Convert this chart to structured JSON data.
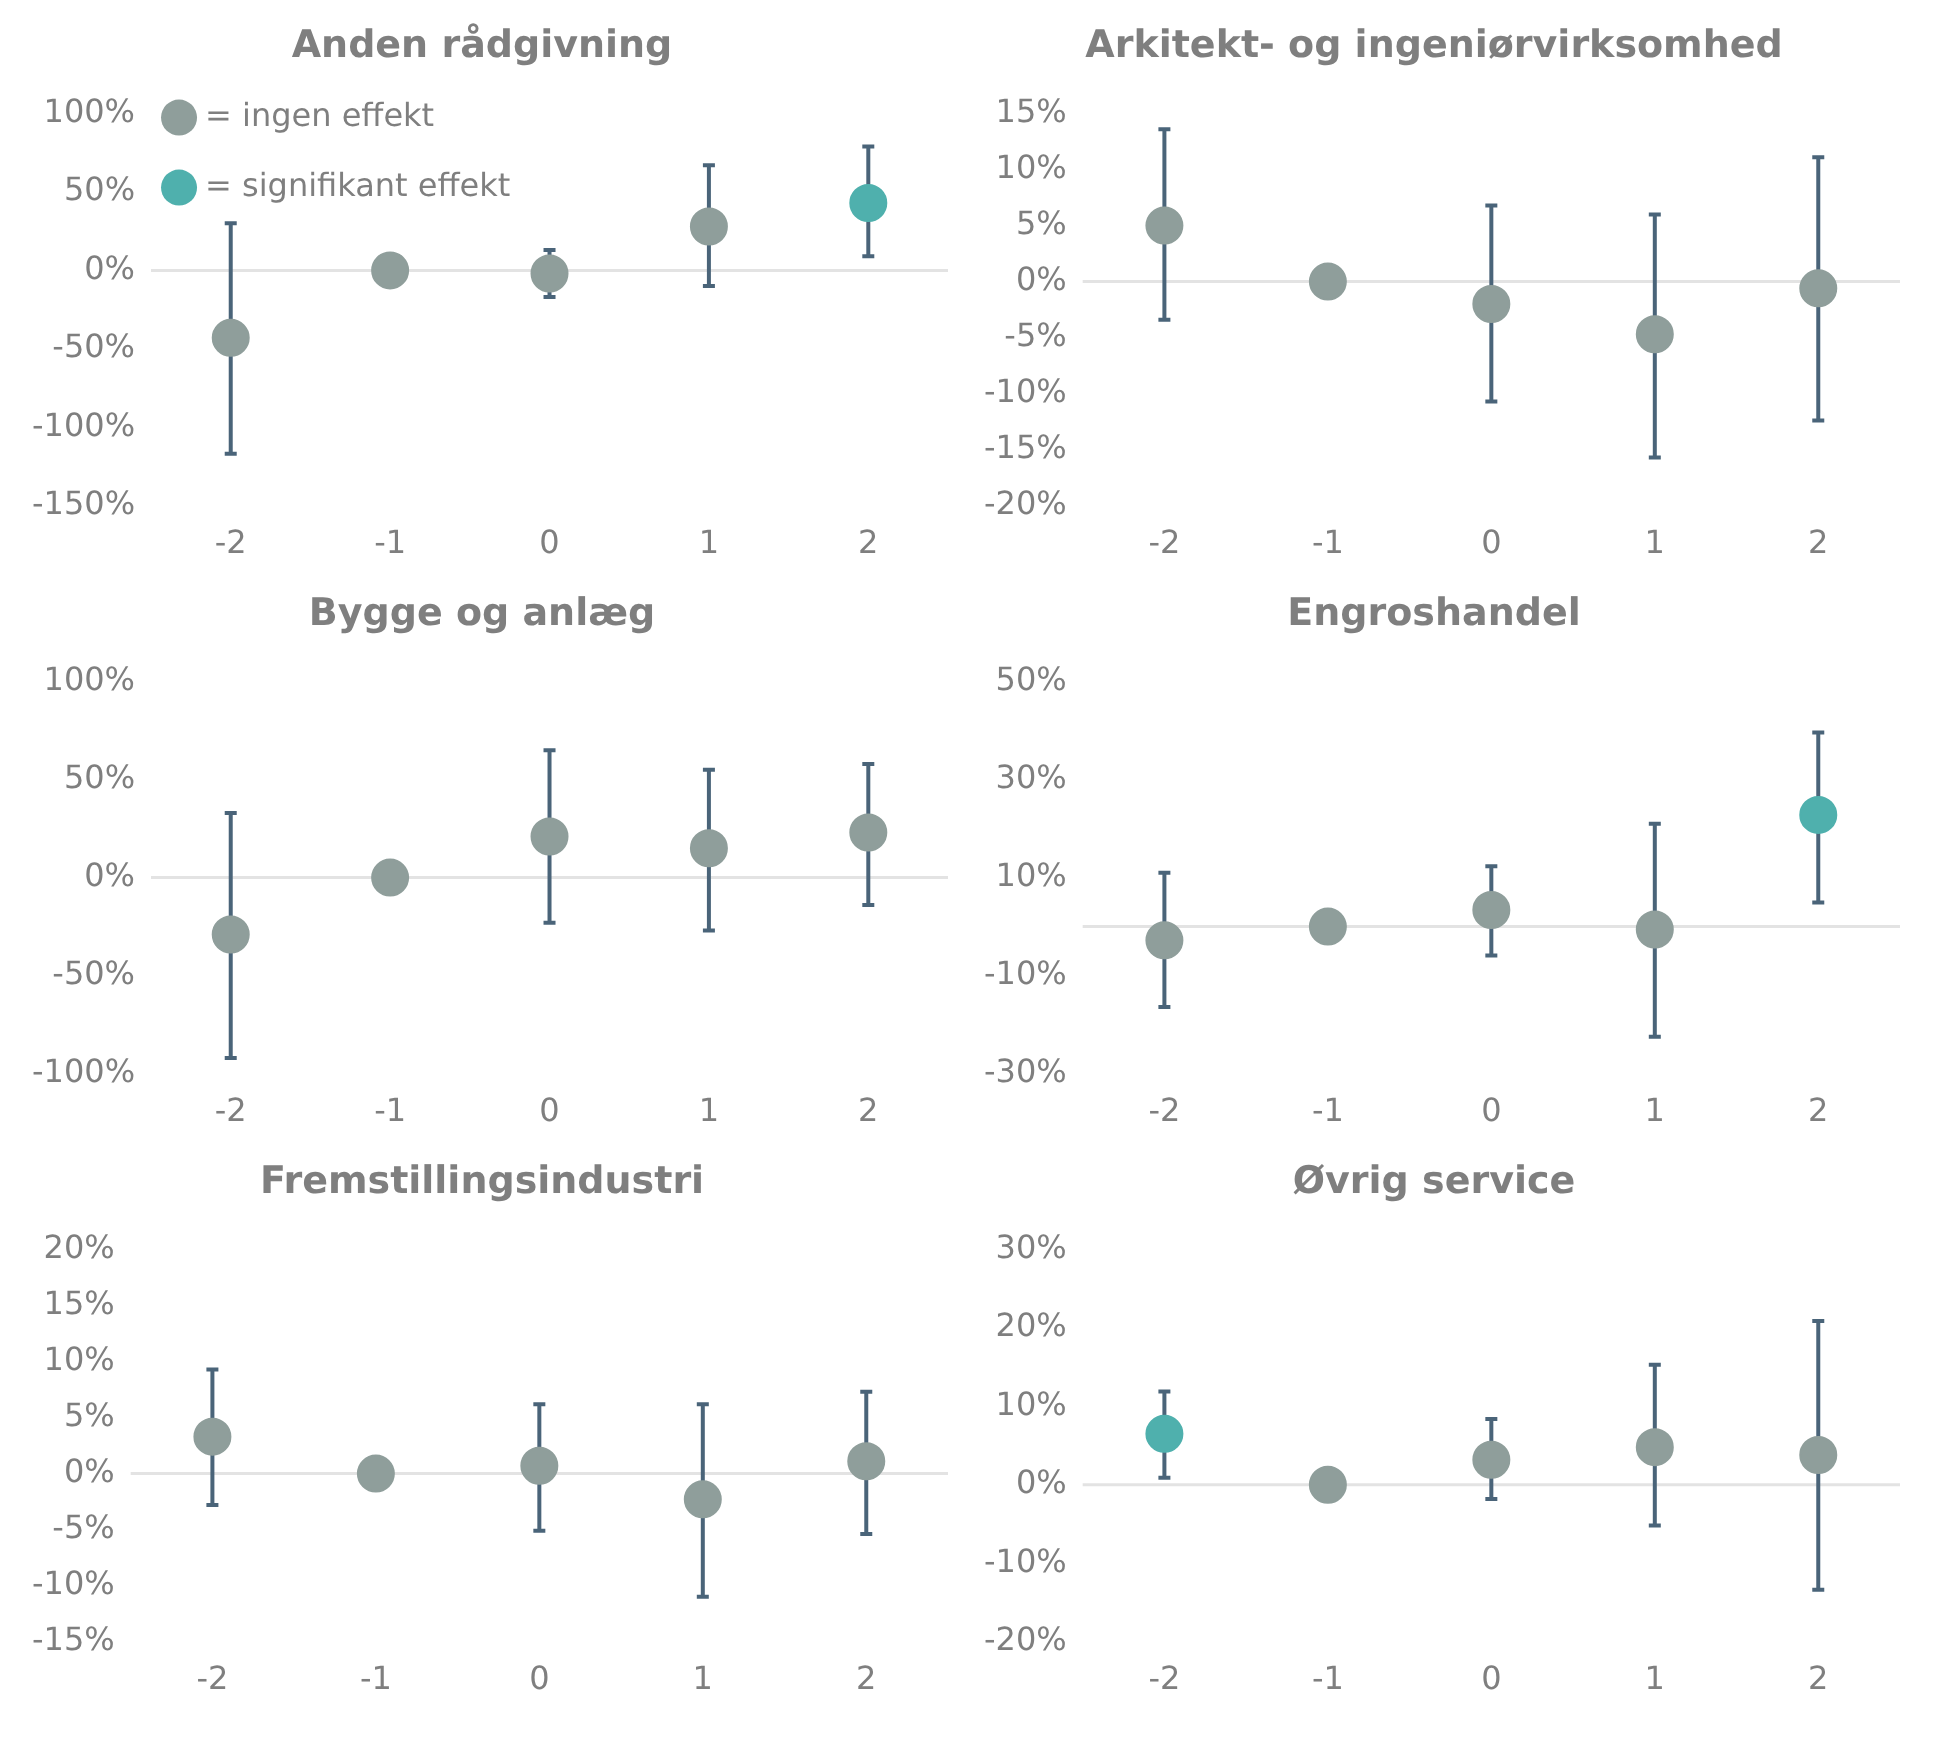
{
  "chart_data": [
    {
      "type": "scatter",
      "title": "Anden rådgivning",
      "categories": [
        "-2",
        "-1",
        "0",
        "1",
        "2"
      ],
      "ylim": [
        -150,
        100
      ],
      "yticks": [
        {
          "value": -150,
          "label": "-150%"
        },
        {
          "value": -100,
          "label": "-100%"
        },
        {
          "value": -50,
          "label": "-50%"
        },
        {
          "value": 0,
          "label": "0%"
        },
        {
          "value": 50,
          "label": "50%"
        },
        {
          "value": 100,
          "label": "100%"
        }
      ],
      "marker": "circle",
      "legend": "top left",
      "ref_lines": [
        {
          "axis": "y",
          "value": 0,
          "color": "#e3e3e3"
        }
      ],
      "series": [
        {
          "name": "= ingen effekt",
          "color": "#8f9e9b",
          "values": [
            -43,
            0,
            -2,
            28,
            null
          ],
          "errors": [
            [
              -117,
              30
            ],
            null,
            [
              -17,
              13
            ],
            [
              -10,
              67
            ],
            null
          ]
        },
        {
          "name": "= signifikant effekt",
          "color": "#4fb0ad",
          "values": [
            null,
            null,
            null,
            null,
            43
          ],
          "errors": [
            null,
            null,
            null,
            null,
            [
              9,
              79
            ]
          ]
        }
      ]
    },
    {
      "type": "scatter",
      "title": "Arkitekt- og ingeniørvirksomhed",
      "categories": [
        "-2",
        "-1",
        "0",
        "1",
        "2"
      ],
      "ylim": [
        -20,
        15
      ],
      "yticks": [
        {
          "value": -20,
          "label": "-20%"
        },
        {
          "value": -15,
          "label": "-15%"
        },
        {
          "value": -10,
          "label": "-10%"
        },
        {
          "value": -5,
          "label": "-5%"
        },
        {
          "value": 0,
          "label": "0%"
        },
        {
          "value": 5,
          "label": "5%"
        },
        {
          "value": 10,
          "label": "10%"
        },
        {
          "value": 15,
          "label": "15%"
        }
      ],
      "marker": "circle",
      "ref_lines": [
        {
          "axis": "y",
          "value": 0,
          "color": "#e3e3e3"
        }
      ],
      "series": [
        {
          "color": "#8f9e9b",
          "values": [
            5,
            0,
            -2,
            -4.7,
            -0.6
          ],
          "errors": [
            [
              -3.4,
              13.6
            ],
            null,
            [
              -10.7,
              6.8
            ],
            [
              -15.7,
              6
            ],
            [
              -12.4,
              11.1
            ]
          ]
        }
      ]
    },
    {
      "type": "scatter",
      "title": "Bygge og anlæg",
      "categories": [
        "-2",
        "-1",
        "0",
        "1",
        "2"
      ],
      "ylim": [
        -100,
        100
      ],
      "yticks": [
        {
          "value": -100,
          "label": "-100%"
        },
        {
          "value": -50,
          "label": "-50%"
        },
        {
          "value": 0,
          "label": "0%"
        },
        {
          "value": 50,
          "label": "50%"
        },
        {
          "value": 100,
          "label": "100%"
        }
      ],
      "marker": "circle",
      "ref_lines": [
        {
          "axis": "y",
          "value": 0,
          "color": "#e3e3e3"
        }
      ],
      "series": [
        {
          "color": "#8f9e9b",
          "values": [
            -29,
            0,
            21,
            15,
            23
          ],
          "errors": [
            [
              -92,
              33
            ],
            null,
            [
              -23,
              65
            ],
            [
              -27,
              55
            ],
            [
              -14,
              58
            ]
          ]
        }
      ]
    },
    {
      "type": "scatter",
      "title": "Engroshandel",
      "categories": [
        "-2",
        "-1",
        "0",
        "1",
        "2"
      ],
      "ylim": [
        -30,
        50
      ],
      "yticks": [
        {
          "value": -30,
          "label": "-30%"
        },
        {
          "value": -10,
          "label": "-10%"
        },
        {
          "value": 10,
          "label": "10%"
        },
        {
          "value": 30,
          "label": "30%"
        },
        {
          "value": 50,
          "label": "50%"
        }
      ],
      "marker": "circle",
      "ref_lines": [
        {
          "axis": "y",
          "value": 0,
          "color": "#e3e3e3"
        }
      ],
      "series": [
        {
          "color": "#8f9e9b",
          "values": [
            -2.8,
            0,
            3.4,
            -0.6,
            null
          ],
          "errors": [
            [
              -16.4,
              11
            ],
            null,
            [
              -5.9,
              12.3
            ],
            [
              -22.5,
              21
            ],
            null
          ]
        },
        {
          "color": "#4fb0ad",
          "values": [
            null,
            null,
            null,
            null,
            22.8
          ],
          "errors": [
            null,
            null,
            null,
            null,
            [
              4.9,
              39.6
            ]
          ]
        }
      ]
    },
    {
      "type": "scatter",
      "title": "Fremstillingsindustri",
      "categories": [
        "-2",
        "-1",
        "0",
        "1",
        "2"
      ],
      "ylim": [
        -15,
        20
      ],
      "yticks": [
        {
          "value": -15,
          "label": "-15%"
        },
        {
          "value": -10,
          "label": "-10%"
        },
        {
          "value": -5,
          "label": "-5%"
        },
        {
          "value": 0,
          "label": "0%"
        },
        {
          "value": 5,
          "label": "5%"
        },
        {
          "value": 10,
          "label": "10%"
        },
        {
          "value": 15,
          "label": "15%"
        },
        {
          "value": 20,
          "label": "20%"
        }
      ],
      "marker": "circle",
      "ref_lines": [
        {
          "axis": "y",
          "value": 0,
          "color": "#e3e3e3"
        }
      ],
      "series": [
        {
          "color": "#8f9e9b",
          "values": [
            3.3,
            0,
            0.7,
            -2.3,
            1.1
          ],
          "errors": [
            [
              -2.8,
              9.3
            ],
            null,
            [
              -5.1,
              6.2
            ],
            [
              -11,
              6.2
            ],
            [
              -5.4,
              7.3
            ]
          ]
        }
      ]
    },
    {
      "type": "scatter",
      "title": "Øvrig service",
      "categories": [
        "-2",
        "-1",
        "0",
        "1",
        "2"
      ],
      "ylim": [
        -20,
        30
      ],
      "yticks": [
        {
          "value": -20,
          "label": "-20%"
        },
        {
          "value": -10,
          "label": "-10%"
        },
        {
          "value": 0,
          "label": "0%"
        },
        {
          "value": 10,
          "label": "10%"
        },
        {
          "value": 20,
          "label": "20%"
        },
        {
          "value": 30,
          "label": "30%"
        }
      ],
      "marker": "circle",
      "ref_lines": [
        {
          "axis": "y",
          "value": 0,
          "color": "#e3e3e3"
        }
      ],
      "series": [
        {
          "color": "#8f9e9b",
          "values": [
            null,
            0,
            3.2,
            4.8,
            3.8
          ],
          "errors": [
            null,
            null,
            [
              -1.8,
              8.4
            ],
            [
              -5.2,
              15.3
            ],
            [
              -13.4,
              20.9
            ]
          ]
        },
        {
          "color": "#4fb0ad",
          "values": [
            6.5,
            null,
            null,
            null,
            null
          ],
          "errors": [
            [
              0.9,
              11.9
            ],
            null,
            null,
            null,
            null
          ]
        }
      ]
    }
  ]
}
